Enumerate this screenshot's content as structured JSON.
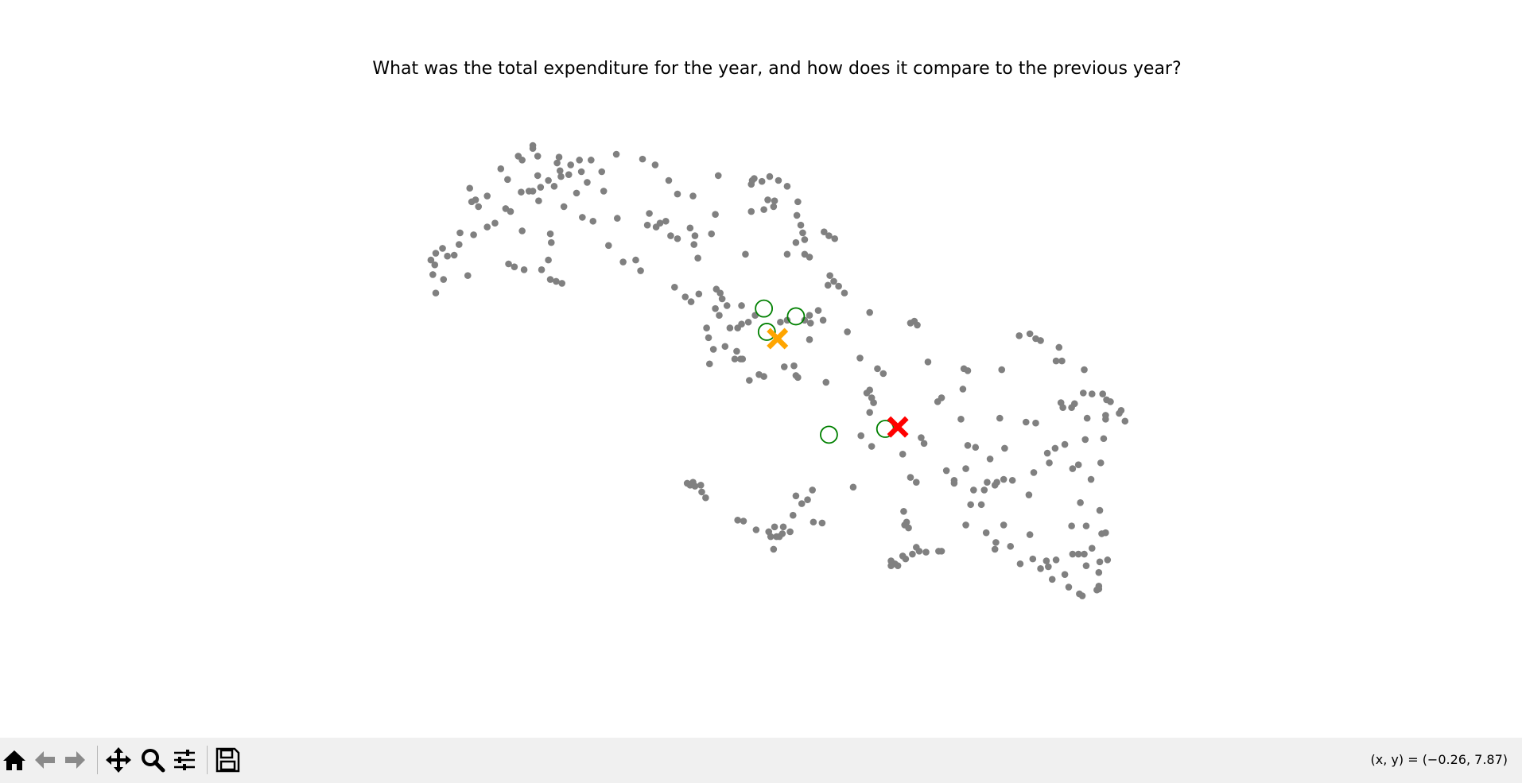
{
  "chart_data": {
    "type": "scatter",
    "title": "What was the total expenditure for the year, and how does it compare to the previous year?",
    "xlim": [
      200,
      1400
    ],
    "ylim": [
      25,
      600
    ],
    "axes_visible": false,
    "series": [
      {
        "color": "#808080",
        "marker": "dot",
        "x": [
          549,
          549,
          534,
          538,
          554,
          576,
          574,
          597,
          609,
          588,
          620,
          635,
          662,
          675,
          516,
          523,
          554,
          565,
          577,
          578,
          586,
          599,
          605,
          571,
          557,
          545,
          537,
          549,
          594,
          622,
          484,
          490,
          486,
          493,
          502,
          521,
          526,
          581,
          600,
          611,
          555,
          510,
          502,
          488,
          474,
          473,
          456,
          449,
          461,
          468,
          444,
          448,
          446,
          457,
          482,
          449,
          538,
          567,
          568,
          565,
          524,
          530,
          540,
          558,
          567,
          573,
          579,
          627,
          636,
          642,
          655,
          660,
          669,
          667,
          680,
          686,
          676,
          691,
          698,
          689,
          698,
          714,
          711,
          716,
          715,
          719,
          733,
          737,
          740,
          775,
          774,
          777,
          785,
          793,
          802,
          811,
          774,
          787,
          791,
          798,
          797,
          822,
          821,
          825,
          827,
          820,
          811,
          829,
          829,
          834,
          849,
          854,
          860,
          768,
          855,
          859,
          864,
          870,
          853,
          695,
          706,
          712,
          720,
          738,
          742,
          744,
          737,
          749,
          741,
          728,
          730,
          752,
          760,
          764,
          771,
          778,
          764,
          804,
          811,
          829,
          834,
          843,
          848,
          835,
          834,
          873,
          896,
          938,
          942,
          945,
          735,
          747,
          759,
          763,
          757,
          765,
          731,
          772,
          782,
          787,
          808,
          818,
          820,
          822,
          851,
          886,
          904,
          910,
          896,
          893,
          898,
          900,
          896,
          887,
          898,
          949,
          952,
          930,
          956,
          993,
          997,
          1032,
          992,
          970,
          966,
          990,
          1050,
          1061,
          1067,
          1072,
          1091,
          1088,
          1094,
          1117,
          1093,
          1095,
          1104,
          1107,
          1116,
          1125,
          1136,
          1140,
          1144,
          1155,
          1153,
          1159,
          1139,
          1139,
          1120,
          1030,
          1057,
          1067,
          997,
          1005,
          1020,
          1035,
          1079,
          1081,
          1087,
          1097,
          1118,
          1137,
          1134,
          1105,
          1111,
          1065,
          1124,
          975,
          983,
          983,
          995,
          1003,
          1014,
          1017,
          1027,
          1034,
          1043,
          1025,
          1060,
          1000,
          1011,
          938,
          944,
          931,
          934,
          932,
          936,
          995,
          1016,
          1026,
          1025,
          1034,
          1041,
          1061,
          1051,
          1064,
          1072,
          1080,
          1078,
          1088,
          1084,
          1097,
          1101,
          1112,
          1115,
          1105,
          1111,
          1117,
          1119,
          1132,
          1125,
          1133,
          1141,
          1139,
          1135,
          1133,
          1113,
          1104,
          1119,
          1132,
          1132,
          1130,
          944,
          947,
          954,
          967,
          970,
          940,
          930,
          933,
          918,
          922,
          925,
          918,
          708,
          714,
          716,
          722,
          711,
          723,
          727,
          760,
          766,
          779,
          792,
          798,
          807,
          794,
          800,
          806,
          803,
          814,
          797,
          817,
          826,
          820,
          832,
          837,
          838,
          847,
          879
        ],
        "y": [
          550,
          547,
          539,
          535,
          539,
          538,
          532,
          535,
          535,
          530,
          523,
          541,
          536,
          530,
          526,
          515,
          519,
          514,
          524,
          518,
          520,
          523,
          512,
          508,
          507,
          503,
          502,
          503,
          501,
          503,
          506,
          494,
          492,
          487,
          498,
          485,
          482,
          487,
          476,
          472,
          493,
          470,
          466,
          458,
          460,
          448,
          444,
          439,
          436,
          437,
          432,
          427,
          417,
          412,
          416,
          398,
          462,
          459,
          450,
          432,
          428,
          425,
          422,
          422,
          412,
          410,
          408,
          447,
          475,
          430,
          432,
          421,
          480,
          468,
          470,
          472,
          466,
          457,
          454,
          514,
          500,
          498,
          465,
          457,
          448,
          434,
          459,
          479,
          519,
          514,
          510,
          516,
          513,
          518,
          514,
          508,
          482,
          484,
          494,
          493,
          487,
          492,
          478,
          468,
          460,
          450,
          438,
          453,
          438,
          435,
          461,
          457,
          454,
          438,
          416,
          410,
          405,
          398,
          406,
          404,
          394,
          389,
          397,
          402,
          398,
          392,
          382,
          385,
          375,
          362,
          352,
          362,
          362,
          366,
          368,
          375,
          385,
          368,
          370,
          370,
          375,
          380,
          370,
          367,
          350,
          358,
          378,
          367,
          369,
          365,
          340,
          343,
          338,
          330,
          330,
          330,
          325,
          308,
          314,
          312,
          322,
          323,
          313,
          311,
          306,
          331,
          320,
          315,
          298,
          295,
          290,
          285,
          275,
          251,
          240,
          249,
          243,
          232,
          327,
          320,
          318,
          319,
          299,
          290,
          286,
          268,
          354,
          356,
          351,
          349,
          342,
          328,
          328,
          319,
          285,
          280,
          280,
          284,
          295,
          294,
          294,
          288,
          286,
          277,
          274,
          266,
          272,
          268,
          269,
          269,
          265,
          264,
          241,
          239,
          227,
          238,
          233,
          223,
          238,
          242,
          247,
          248,
          223,
          217,
          221,
          213,
          206,
          215,
          205,
          202,
          217,
          195,
          195,
          203,
          203,
          206,
          205,
          200,
          190,
          180,
          180,
          208,
          203,
          173,
          162,
          159,
          156,
          159,
          151,
          141,
          134,
          159,
          137,
          149,
          119,
          124,
          114,
          116,
          122,
          123,
          103,
          108,
          95,
          88,
          86,
          129,
          129,
          129,
          117,
          110,
          135,
          121,
          123,
          151,
          150,
          174,
          182,
          158,
          158,
          96,
          93,
          92,
          136,
          132,
          131,
          132,
          132,
          129,
          127,
          124,
          122,
          119,
          117,
          117,
          202,
          203,
          199,
          200,
          200,
          193,
          187,
          164,
          163,
          154,
          152,
          157,
          157,
          147,
          147,
          150,
          147,
          152,
          134,
          169,
          181,
          189,
          185,
          195,
          162,
          161,
          198
        ]
      },
      {
        "color": "green",
        "marker": "open-circle",
        "x": [
          787,
          820,
          790,
          854,
          912
        ],
        "y": [
          382,
          374,
          358,
          252,
          258
        ]
      },
      {
        "color": "orange",
        "marker": "X",
        "x": [
          801
        ],
        "y": [
          351
        ]
      },
      {
        "color": "red",
        "marker": "X",
        "x": [
          925
        ],
        "y": [
          260
        ]
      }
    ]
  },
  "toolbar": {
    "status": "(x, y) = (−0.26, 7.87)"
  }
}
